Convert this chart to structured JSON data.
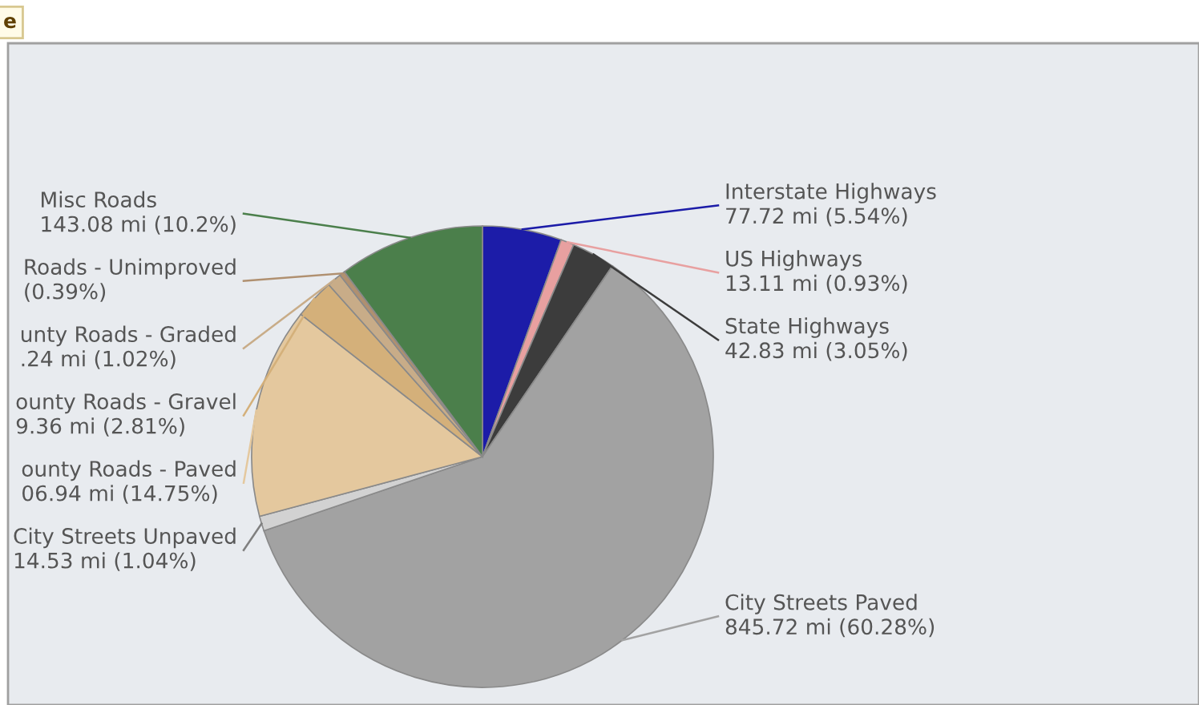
{
  "chart_data": {
    "type": "pie",
    "categories": [
      "Interstate Highways",
      "US Highways",
      "State Highways",
      "City Streets Paved",
      "City Streets Unpaved",
      "ounty Roads - Paved",
      "ounty Roads - Gravel",
      "unty Roads - Graded",
      "Roads - Unimproved",
      "Misc Roads"
    ],
    "values": [
      5.54,
      0.93,
      3.05,
      60.28,
      1.04,
      14.75,
      2.81,
      1.02,
      0.39,
      10.2
    ],
    "value_labels": [
      "77.72 mi (5.54%)",
      "13.11 mi (0.93%)",
      "42.83 mi (3.05%)",
      "845.72 mi (60.28%)",
      "14.53 mi (1.04%)",
      "06.94 mi (14.75%)",
      "9.36 mi (2.81%)",
      ".24 mi (1.02%)",
      "(0.39%)",
      "143.08 mi (10.2%)"
    ],
    "colors": [
      "#1c1ca8",
      "#e8a0a0",
      "#3c3c3c",
      "#a2a2a2",
      "#d2d2d2",
      "#e4c89e",
      "#d4b07a",
      "#c8ac88",
      "#b09070",
      "#4b7f4b"
    ],
    "annotations": [
      "e"
    ],
    "legend": false
  }
}
